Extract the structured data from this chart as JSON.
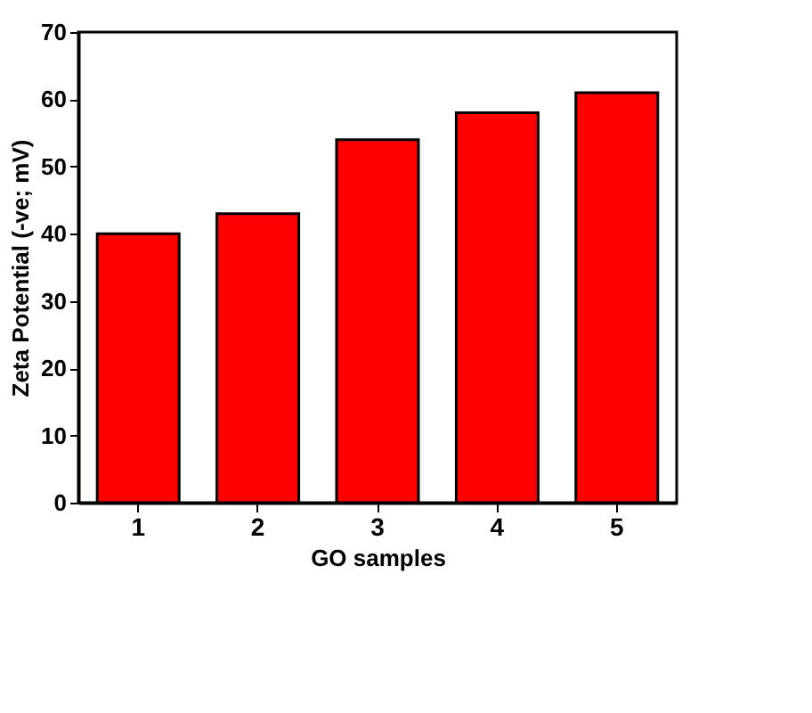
{
  "chart_data": {
    "type": "bar",
    "xlabel": "GO samples",
    "ylabel": "Zeta Potential (-ve; mV)",
    "categories": [
      "1",
      "2",
      "3",
      "4",
      "5"
    ],
    "values": [
      40,
      43,
      54,
      58,
      61
    ],
    "color": "#ff0000",
    "ylim": [
      0,
      70
    ],
    "yticks": [
      0,
      10,
      20,
      30,
      40,
      50,
      60,
      70
    ],
    "grid": false
  }
}
